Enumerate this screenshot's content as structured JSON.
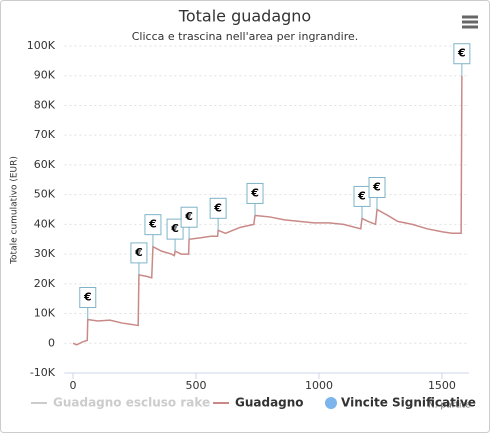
{
  "chart_data": {
    "type": "line",
    "title": "Totale guadagno",
    "subtitle": "Clicca e trascina nell'area per ingrandire.",
    "y_label": "Totale cumulativo (EUR)",
    "x_label": "N. partite",
    "xlim": [
      -35,
      1610
    ],
    "ylim": [
      -10000,
      100000
    ],
    "xticks": [
      0,
      500,
      1000,
      1500
    ],
    "yticks": [
      {
        "value": -10000,
        "label": "-10K"
      },
      0,
      {
        "value": 10000,
        "label": "10K"
      },
      {
        "value": 20000,
        "label": "20K"
      },
      {
        "value": 30000,
        "label": "30K"
      },
      {
        "value": 40000,
        "label": "40K"
      },
      {
        "value": 50000,
        "label": "50K"
      },
      {
        "value": 60000,
        "label": "60K"
      },
      {
        "value": 70000,
        "label": "70K"
      },
      {
        "value": 80000,
        "label": "80K"
      },
      {
        "value": 90000,
        "label": "90K"
      },
      {
        "value": 100000,
        "label": "100K"
      }
    ],
    "grid": true,
    "series": [
      {
        "name": "Guadagno escluso rake",
        "color": "#cccccc",
        "visible": false
      },
      {
        "name": "Guadagno",
        "color": "#c98a87",
        "visible": true,
        "x": [
          0,
          15,
          40,
          58,
          60,
          100,
          150,
          200,
          265,
          268,
          300,
          320,
          325,
          360,
          400,
          412,
          415,
          440,
          470,
          472,
          520,
          560,
          588,
          590,
          620,
          680,
          735,
          740,
          800,
          860,
          920,
          980,
          1040,
          1100,
          1170,
          1175,
          1200,
          1230,
          1236,
          1280,
          1320,
          1380,
          1440,
          1500,
          1540,
          1578,
          1581
        ],
        "values": [
          0,
          -500,
          500,
          1000,
          8000,
          7500,
          7800,
          6800,
          6000,
          23000,
          22500,
          22000,
          32500,
          31000,
          30000,
          29500,
          31000,
          30000,
          30000,
          35000,
          35500,
          36000,
          36000,
          38000,
          37000,
          39000,
          40000,
          43000,
          42500,
          41500,
          41000,
          40500,
          40500,
          40000,
          38500,
          42000,
          41000,
          40000,
          45000,
          43000,
          41000,
          40000,
          38500,
          37500,
          37000,
          37000,
          90000
        ]
      },
      {
        "name": "Vincite Significative",
        "color": "#7cb5ec",
        "visible": true,
        "flag_text": "€",
        "x": [
          60,
          268,
          325,
          415,
          472,
          590,
          740,
          1175,
          1236,
          1581
        ],
        "values": [
          8000,
          23000,
          32500,
          31000,
          35000,
          38000,
          43000,
          42000,
          45000,
          90000
        ]
      }
    ]
  }
}
